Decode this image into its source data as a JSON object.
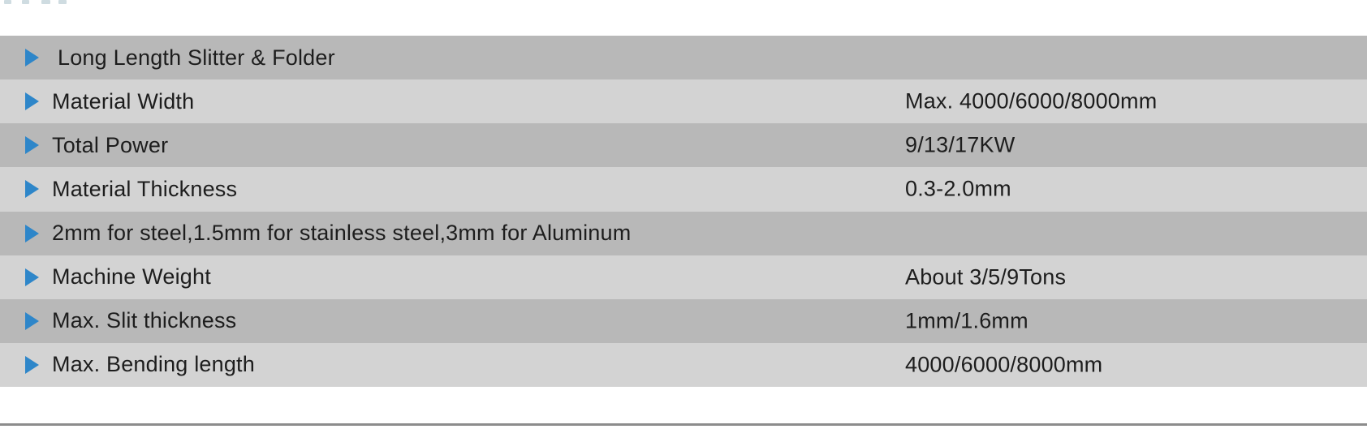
{
  "colors": {
    "row_dark": "#b8b8b8",
    "row_light": "#d3d3d3",
    "accent_blue": "#2e86c9",
    "text": "#1d1d1d",
    "bottom_rule": "#8c8c8c",
    "page_bg": "#ffffff"
  },
  "table": {
    "title_row": "Long Length Slitter & Folder",
    "rows": [
      {
        "label": "Long Length Slitter & Folder",
        "value": "",
        "shade": "dark",
        "header": true
      },
      {
        "label": "Material Width",
        "value": "Max. 4000/6000/8000mm",
        "shade": "light",
        "header": false
      },
      {
        "label": "Total Power",
        "value": "9/13/17KW",
        "shade": "dark",
        "header": false
      },
      {
        "label": "Material Thickness",
        "value": "0.3-2.0mm",
        "shade": "light",
        "header": false
      },
      {
        "label": "2mm for steel,1.5mm for stainless steel,3mm for Aluminum",
        "value": "",
        "shade": "dark",
        "header": false
      },
      {
        "label": "Machine Weight",
        "value": "About 3/5/9Tons",
        "shade": "light",
        "header": false
      },
      {
        "label": "Max. Slit thickness",
        "value": "1mm/1.6mm",
        "shade": "dark",
        "header": false
      },
      {
        "label": "Max. Bending length",
        "value": "4000/6000/8000mm",
        "shade": "light",
        "header": false
      }
    ]
  }
}
